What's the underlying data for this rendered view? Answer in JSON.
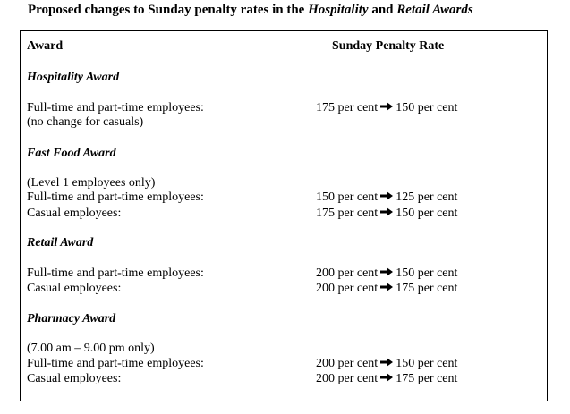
{
  "title": {
    "prefix": "Proposed changes to Sunday penalty rates in the ",
    "award1": "Hospitality",
    "and": " and ",
    "award2": "Retail Awards"
  },
  "table": {
    "header_award": "Award",
    "header_rate": "Sunday Penalty Rate",
    "sections": [
      {
        "name": "Hospitality Award",
        "lines": [
          {
            "label": "Full-time and part-time employees:",
            "from": "175 per cent",
            "to": "150 per cent"
          },
          {
            "label": "(no change for casuals)"
          }
        ]
      },
      {
        "name": "Fast Food Award",
        "lines": [
          {
            "label": "(Level 1 employees only)"
          },
          {
            "label": "Full-time and part-time employees:",
            "from": "150 per cent",
            "to": "125 per cent"
          },
          {
            "label": "Casual employees:",
            "from": "175 per cent",
            "to": "150 per cent"
          }
        ]
      },
      {
        "name": "Retail Award",
        "lines": [
          {
            "label": "Full-time and part-time employees:",
            "from": "200 per cent",
            "to": "150 per cent"
          },
          {
            "label": "Casual employees:",
            "from": "200 per cent",
            "to": "175 per cent"
          }
        ]
      },
      {
        "name": "Pharmacy Award",
        "lines": [
          {
            "label": "(7.00 am – 9.00 pm only)"
          },
          {
            "label": "Full-time and part-time employees:",
            "from": "200 per cent",
            "to": "150 per cent"
          },
          {
            "label": "Casual employees:",
            "from": "200 per cent",
            "to": "175 per cent"
          }
        ]
      }
    ]
  },
  "arrow_icon": "right-arrow-icon"
}
